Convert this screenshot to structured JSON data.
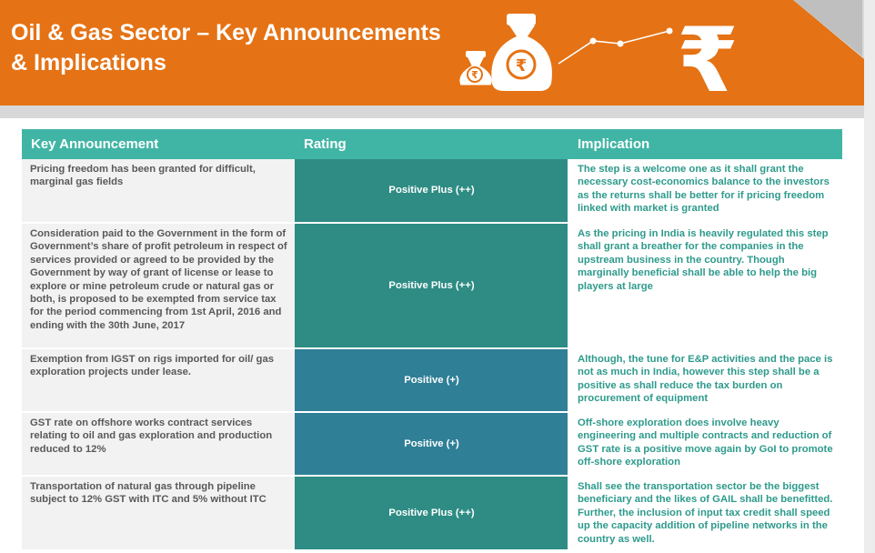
{
  "header": {
    "title_line1": "Oil & Gas Sector – Key Announcements",
    "title_line2": "& Implications",
    "icons": [
      "money-bag-rupee-icon",
      "rising-trend-line-icon",
      "rupee-symbol-icon"
    ]
  },
  "colors": {
    "banner": "#e57214",
    "header_teal": "#41b5a5",
    "positive_plus": "#2e8c84",
    "positive": "#2f7f96",
    "implication_text": "#2e9a8c",
    "announcement_bg": "#f2f2f2"
  },
  "table": {
    "headers": {
      "announcement": "Key Announcement",
      "rating": "Rating",
      "implication": "Implication"
    },
    "rows": [
      {
        "announcement": "Pricing freedom has been granted for difficult, marginal gas fields",
        "rating": "Positive Plus (++)",
        "implication": "The step is a welcome one as it shall grant the necessary cost-economics balance to the investors as the returns shall be better for if pricing freedom linked with market is granted"
      },
      {
        "announcement": "Consideration paid to the Government in the form of Government’s share of profit petroleum in respect of services provided or agreed to be provided by the Government by way of grant of license or lease to explore or mine petroleum crude or natural gas or both, is proposed to be exempted from service tax for the period commencing from 1st April, 2016 and ending with the 30th June, 2017",
        "rating": "Positive Plus (++)",
        "implication": "As the pricing in India is heavily regulated this step shall grant a breather for the companies in the upstream business in the country. Though marginally beneficial  shall be able to help the big players at large"
      },
      {
        "announcement": "Exemption from IGST on rigs imported for oil/ gas exploration projects under lease.",
        "rating": "Positive (+)",
        "implication": "Although, the tune for E&P activities and the pace is not as much in India, however this step shall be a positive as shall reduce the tax burden on procurement of equipment"
      },
      {
        "announcement": "GST rate on offshore works contract services relating to oil and gas exploration and production reduced to 12%",
        "rating": "Positive (+)",
        "implication": "Off-shore exploration does involve heavy engineering and multiple contracts and reduction of GST rate is a positive move again by GoI to promote off-shore exploration"
      },
      {
        "announcement": "Transportation of natural gas through pipeline subject to 12% GST with ITC and 5% without ITC",
        "rating": "Positive Plus (++)",
        "implication": "Shall see the transportation sector be the biggest beneficiary and the likes of GAIL shall be benefitted. Further, the inclusion of input tax credit shall speed up the capacity addition of pipeline networks in the country as well."
      }
    ]
  }
}
